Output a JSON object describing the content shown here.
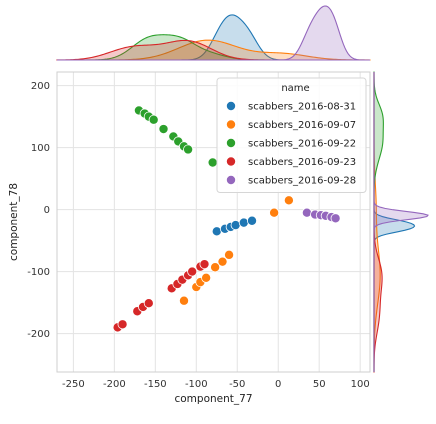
{
  "chart_data": {
    "type": "scatter",
    "title": "",
    "xlabel": "component_77",
    "ylabel": "component_78",
    "xlim": [
      -270,
      112
    ],
    "ylim": [
      -262,
      222
    ],
    "xticks": [
      -250,
      -200,
      -150,
      -100,
      -50,
      0,
      50,
      100
    ],
    "yticks": [
      -200,
      -100,
      0,
      100,
      200
    ],
    "grid": true,
    "legend": {
      "title": "name",
      "placement": "top-right"
    },
    "marginal": {
      "top": "kde",
      "right": "kde",
      "fill": true
    },
    "series": [
      {
        "name": "scabbers_2016-08-31",
        "color": "#1f77b4",
        "points": [
          [
            -75,
            -35
          ],
          [
            -65,
            -31
          ],
          [
            -58,
            -28
          ],
          [
            -52,
            -25
          ],
          [
            -42,
            -21
          ],
          [
            -32,
            -18
          ]
        ]
      },
      {
        "name": "scabbers_2016-09-07",
        "color": "#ff7f0e",
        "points": [
          [
            -115,
            -147
          ],
          [
            -100,
            -125
          ],
          [
            -95,
            -117
          ],
          [
            -88,
            -110
          ],
          [
            -77,
            -93
          ],
          [
            -68,
            -84
          ],
          [
            -60,
            -73
          ],
          [
            -5,
            -5
          ],
          [
            13,
            15
          ]
        ]
      },
      {
        "name": "scabbers_2016-09-22",
        "color": "#2ca02c",
        "points": [
          [
            -170,
            160
          ],
          [
            -163,
            155
          ],
          [
            -158,
            150
          ],
          [
            -152,
            145
          ],
          [
            -140,
            130
          ],
          [
            -128,
            118
          ],
          [
            -122,
            110
          ],
          [
            -115,
            102
          ],
          [
            -110,
            97
          ],
          [
            -80,
            76
          ]
        ]
      },
      {
        "name": "scabbers_2016-09-23",
        "color": "#d62728",
        "points": [
          [
            -196,
            -190
          ],
          [
            -190,
            -185
          ],
          [
            -172,
            -164
          ],
          [
            -165,
            -157
          ],
          [
            -158,
            -151
          ],
          [
            -130,
            -127
          ],
          [
            -123,
            -120
          ],
          [
            -117,
            -113
          ],
          [
            -110,
            -106
          ],
          [
            -105,
            -100
          ],
          [
            -95,
            -92
          ],
          [
            -90,
            -88
          ]
        ]
      },
      {
        "name": "scabbers_2016-09-28",
        "color": "#9467bd",
        "points": [
          [
            35,
            -5
          ],
          [
            45,
            -8
          ],
          [
            52,
            -9
          ],
          [
            58,
            -10
          ],
          [
            65,
            -12
          ],
          [
            70,
            -14
          ]
        ]
      }
    ]
  }
}
